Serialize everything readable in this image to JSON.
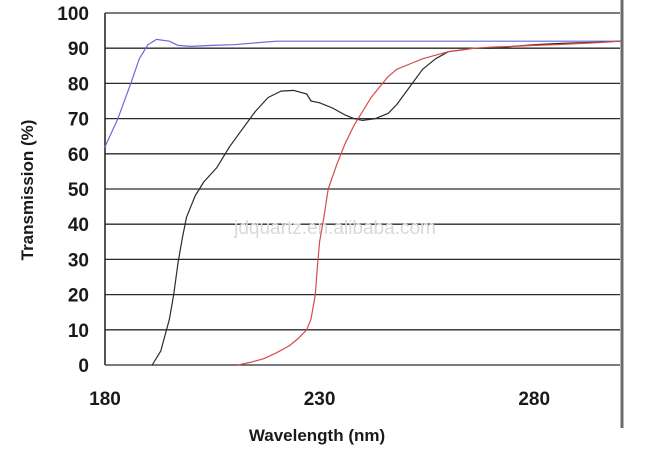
{
  "chart_data": {
    "type": "line",
    "title": "",
    "xlabel": "Wavelength (nm)",
    "ylabel": "Transmission (%)",
    "xlim": [
      180,
      300
    ],
    "ylim": [
      0,
      100
    ],
    "x_ticks": [
      "180",
      "230",
      "280"
    ],
    "x_tick_values": [
      180,
      230,
      280
    ],
    "y_ticks": [
      "0",
      "10",
      "20",
      "30",
      "40",
      "50",
      "60",
      "70",
      "80",
      "90",
      "100"
    ],
    "y_tick_values": [
      0,
      10,
      20,
      30,
      40,
      50,
      60,
      70,
      80,
      90,
      100
    ],
    "grid": "horizontal",
    "watermark": "jdquartz.en.alibaba.com",
    "series": [
      {
        "color": "#6a6ad8",
        "points": [
          [
            180,
            62
          ],
          [
            183,
            70
          ],
          [
            186,
            80
          ],
          [
            188,
            87
          ],
          [
            190,
            91
          ],
          [
            192,
            92.5
          ],
          [
            195,
            92
          ],
          [
            197,
            90.8
          ],
          [
            200,
            90.5
          ],
          [
            205,
            90.8
          ],
          [
            210,
            91
          ],
          [
            215,
            91.5
          ],
          [
            220,
            92
          ],
          [
            230,
            92
          ],
          [
            240,
            92
          ],
          [
            250,
            92
          ],
          [
            260,
            92
          ],
          [
            270,
            92
          ],
          [
            280,
            92
          ],
          [
            290,
            92
          ],
          [
            300,
            92
          ]
        ]
      },
      {
        "color": "#2a2a2a",
        "points": [
          [
            191,
            0
          ],
          [
            193,
            4
          ],
          [
            195,
            13
          ],
          [
            196,
            20
          ],
          [
            197,
            29
          ],
          [
            198,
            36
          ],
          [
            199,
            42
          ],
          [
            201,
            48
          ],
          [
            203,
            52
          ],
          [
            206,
            56
          ],
          [
            209,
            62
          ],
          [
            212,
            67
          ],
          [
            215,
            72
          ],
          [
            218,
            76
          ],
          [
            221,
            77.8
          ],
          [
            224,
            78
          ],
          [
            227,
            77
          ],
          [
            228,
            75
          ],
          [
            230,
            74.5
          ],
          [
            233,
            73
          ],
          [
            236,
            71
          ],
          [
            238,
            70
          ],
          [
            240,
            69.5
          ],
          [
            243,
            70
          ],
          [
            246,
            71.5
          ],
          [
            248,
            74
          ],
          [
            251,
            79
          ],
          [
            254,
            84
          ],
          [
            257,
            87
          ],
          [
            260,
            89
          ],
          [
            263,
            89.5
          ],
          [
            266,
            90
          ],
          [
            270,
            90
          ],
          [
            275,
            90.5
          ],
          [
            280,
            91
          ],
          [
            285,
            91.3
          ],
          [
            290,
            91.5
          ],
          [
            295,
            91.7
          ],
          [
            300,
            92
          ]
        ]
      },
      {
        "color": "#d84a4a",
        "points": [
          [
            211,
            0
          ],
          [
            214,
            0.8
          ],
          [
            217,
            1.8
          ],
          [
            220,
            3.5
          ],
          [
            223,
            5.5
          ],
          [
            225,
            7.5
          ],
          [
            227,
            10
          ],
          [
            228,
            13
          ],
          [
            229,
            20
          ],
          [
            229.5,
            28
          ],
          [
            230,
            35
          ],
          [
            231,
            42
          ],
          [
            232,
            50
          ],
          [
            234,
            57
          ],
          [
            236,
            63
          ],
          [
            238,
            68
          ],
          [
            240,
            72
          ],
          [
            242,
            76
          ],
          [
            244,
            79
          ],
          [
            246,
            82
          ],
          [
            248,
            84
          ],
          [
            251,
            85.5
          ],
          [
            254,
            87
          ],
          [
            257,
            88
          ],
          [
            260,
            89
          ],
          [
            263,
            89.5
          ],
          [
            266,
            90
          ],
          [
            270,
            90.3
          ],
          [
            275,
            90.5
          ],
          [
            280,
            90.8
          ],
          [
            285,
            91
          ],
          [
            290,
            91.3
          ],
          [
            295,
            91.6
          ],
          [
            300,
            92
          ]
        ]
      }
    ]
  }
}
